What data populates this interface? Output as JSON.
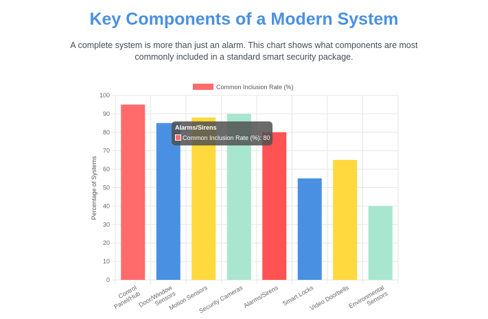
{
  "header": {
    "title": "Key Components of a Modern System",
    "subtitle": "A complete system is more than just an alarm. This chart shows what components are most commonly included in a standard smart security package."
  },
  "tooltip": {
    "title": "Alarms/Sirens",
    "label": "Common Inclusion Rate (%): 80",
    "color": "#ff6b6b"
  },
  "chart_data": {
    "type": "bar",
    "categories": [
      [
        "Control",
        "Panel/Hub"
      ],
      [
        "Door/Window",
        "Sensors"
      ],
      [
        "Motion Sensors"
      ],
      [
        "Security Cameras"
      ],
      [
        "Alarms/Sirens"
      ],
      [
        "Smart Locks"
      ],
      [
        "Video Doorbells"
      ],
      [
        "Environmental",
        "Sensors"
      ]
    ],
    "series": [
      {
        "name": "Common Inclusion Rate (%)",
        "values": [
          95,
          85,
          88,
          90,
          80,
          55,
          65,
          40
        ]
      }
    ],
    "colors": [
      "#ff6b6b",
      "#4a90e2",
      "#ffd93d",
      "#a8e6cf",
      "#ff6b6b",
      "#4a90e2",
      "#ffd93d",
      "#a8e6cf"
    ],
    "highlight_color": "#ff5252",
    "highlight_index": 4,
    "ylabel": "Percentage of Systems",
    "ylim": [
      0,
      100
    ],
    "yticks": [
      0,
      10,
      20,
      30,
      40,
      50,
      60,
      70,
      80,
      90,
      100
    ],
    "grid": true,
    "legend": "top",
    "legend_color": "#ff6b6b"
  }
}
